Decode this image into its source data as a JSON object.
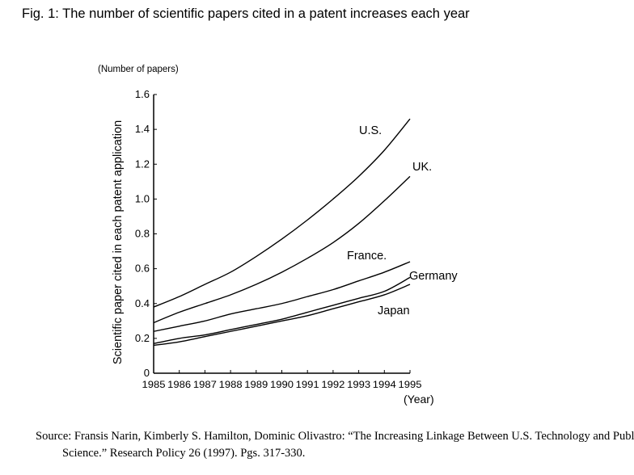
{
  "figure": {
    "title": "Fig. 1: The number of scientific papers cited in a patent increases each year",
    "unit_label": "(Number of papers)",
    "source": "Source: Fransis Narin, Kimberly S. Hamilton, Dominic Olivastro: “The Increasing Linkage Between U.S. Technology and Public Science.” Research Policy 26 (1997). Pgs. 317-330."
  },
  "chart_data": {
    "type": "line",
    "title": "Fig. 1: The number of scientific papers cited in a patent increases each year",
    "xlabel": "(Year)",
    "ylabel": "Scientific paper cited in each patent application",
    "yunit": "(Number of papers)",
    "xlim": [
      1985,
      1995
    ],
    "ylim": [
      0,
      1.6
    ],
    "x": [
      1985,
      1986,
      1987,
      1988,
      1989,
      1990,
      1991,
      1992,
      1993,
      1994,
      1995
    ],
    "x_ticks": [
      "1985",
      "1986",
      "1987",
      "1988",
      "1989",
      "1990",
      "1991",
      "1992",
      "1993",
      "1994",
      "1995"
    ],
    "y_ticks": [
      "0",
      "0.2",
      "0.4",
      "0.6",
      "0.8",
      "1.0",
      "1.2",
      "1.4",
      "1.6"
    ],
    "y_tick_values": [
      0,
      0.2,
      0.4,
      0.6,
      0.8,
      1.0,
      1.2,
      1.4,
      1.6
    ],
    "grid": false,
    "legend": "direct labels at line ends",
    "series": [
      {
        "name": "U.S.",
        "values": [
          0.38,
          0.44,
          0.51,
          0.58,
          0.67,
          0.77,
          0.88,
          1.0,
          1.13,
          1.28,
          1.46
        ]
      },
      {
        "name": "UK.",
        "values": [
          0.29,
          0.35,
          0.4,
          0.45,
          0.51,
          0.58,
          0.66,
          0.75,
          0.86,
          0.99,
          1.13
        ]
      },
      {
        "name": "France.",
        "values": [
          0.24,
          0.27,
          0.3,
          0.34,
          0.37,
          0.4,
          0.44,
          0.48,
          0.53,
          0.58,
          0.64
        ]
      },
      {
        "name": "Germany",
        "values": [
          0.17,
          0.2,
          0.22,
          0.25,
          0.28,
          0.31,
          0.35,
          0.39,
          0.43,
          0.47,
          0.55
        ]
      },
      {
        "name": "Japan",
        "values": [
          0.16,
          0.18,
          0.21,
          0.24,
          0.27,
          0.3,
          0.33,
          0.37,
          0.41,
          0.45,
          0.51
        ]
      }
    ],
    "line_color": "#000000"
  }
}
